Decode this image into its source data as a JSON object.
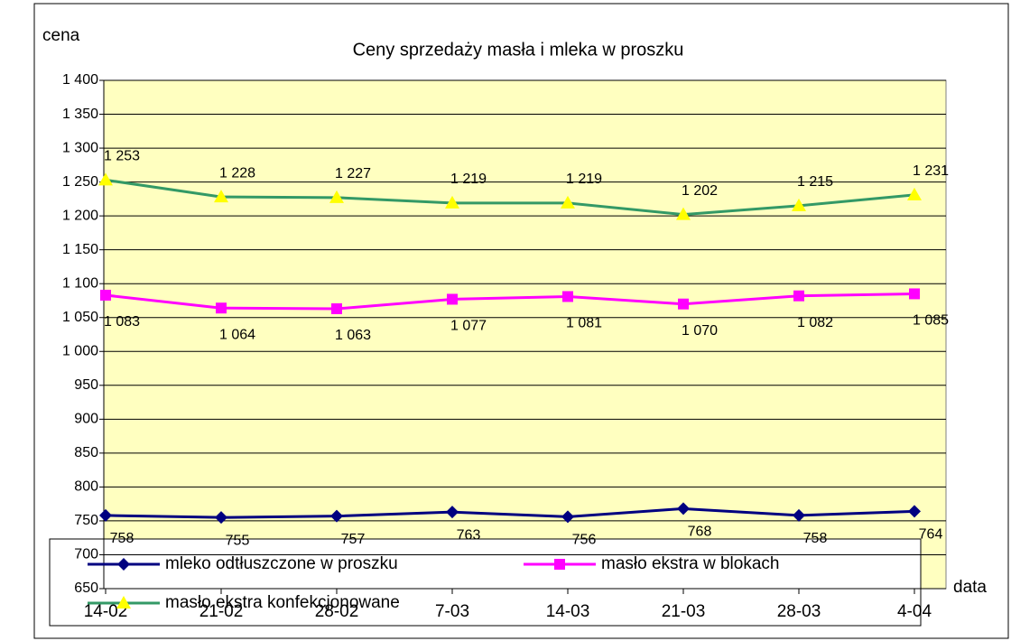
{
  "chart_data": {
    "type": "line",
    "title": "Ceny sprzedaży masła i mleka w proszku",
    "y_label": "cena",
    "x_label": "data",
    "categories": [
      "14-02",
      "21-02",
      "28-02",
      "7-03",
      "14-03",
      "21-03",
      "28-03",
      "4-04"
    ],
    "series": [
      {
        "name": "mleko odtłuszczone w proszku",
        "color": "#000080",
        "marker": "diamond",
        "values": [
          758,
          755,
          757,
          763,
          756,
          768,
          758,
          764
        ],
        "value_labels": [
          "758",
          "755",
          "757",
          "763",
          "756",
          "768",
          "758",
          "764"
        ]
      },
      {
        "name": "masło ekstra w blokach",
        "color": "#ff00ff",
        "marker": "square",
        "values": [
          1083,
          1064,
          1063,
          1077,
          1081,
          1070,
          1082,
          1085
        ],
        "value_labels": [
          "1 083",
          "1 064",
          "1 063",
          "1 077",
          "1 081",
          "1 070",
          "1 082",
          "1 085"
        ]
      },
      {
        "name": "masło ekstra konfekcjonowane",
        "color": "#339966",
        "marker": "triangle",
        "marker_color": "#ffff00",
        "values": [
          1253,
          1228,
          1227,
          1219,
          1219,
          1202,
          1215,
          1231
        ],
        "value_labels": [
          "1 253",
          "1 228",
          "1 227",
          "1 219",
          "1 219",
          "1 202",
          "1 215",
          "1 231"
        ]
      }
    ],
    "ylim": [
      650,
      1400
    ],
    "yticks": [
      650,
      700,
      750,
      800,
      850,
      900,
      950,
      {
        "value": 1000,
        "label": "1 000"
      },
      {
        "value": 1050,
        "label": "1 050"
      },
      {
        "value": 1100,
        "label": "1 100"
      },
      {
        "value": 1150,
        "label": "1 150"
      },
      {
        "value": 1200,
        "label": "1 200"
      },
      {
        "value": 1250,
        "label": "1 250"
      },
      {
        "value": 1300,
        "label": "1 300"
      },
      {
        "value": 1350,
        "label": "1 350"
      },
      {
        "value": 1400,
        "label": "1 400"
      }
    ],
    "grid": true,
    "legend": "bottom"
  }
}
